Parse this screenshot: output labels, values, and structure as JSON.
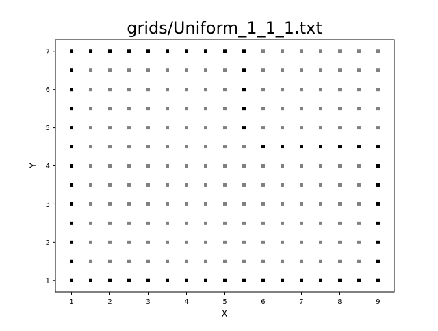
{
  "chart_data": {
    "type": "scatter",
    "title": "grids/Uniform_1_1_1.txt",
    "xlabel": "X",
    "ylabel": "Y",
    "xlim": [
      0.58,
      9.42
    ],
    "ylim": [
      0.7,
      7.3
    ],
    "xticks": [
      1,
      2,
      3,
      4,
      5,
      6,
      7,
      8,
      9
    ],
    "yticks": [
      1,
      2,
      3,
      4,
      5,
      6,
      7
    ],
    "grid": false,
    "legend": "none",
    "marker": "square",
    "grid_points": {
      "x_start": 1,
      "x_end": 9,
      "x_step": 0.5,
      "y_start": 1,
      "y_end": 7,
      "y_step": 0.5,
      "color": "#808080"
    },
    "highlighted_points": {
      "color": "#000000",
      "points": [
        [
          1,
          1
        ],
        [
          1.5,
          1
        ],
        [
          2,
          1
        ],
        [
          2.5,
          1
        ],
        [
          3,
          1
        ],
        [
          3.5,
          1
        ],
        [
          4,
          1
        ],
        [
          4.5,
          1
        ],
        [
          5,
          1
        ],
        [
          5.5,
          1
        ],
        [
          6,
          1
        ],
        [
          6.5,
          1
        ],
        [
          7,
          1
        ],
        [
          7.5,
          1
        ],
        [
          8,
          1
        ],
        [
          8.5,
          1
        ],
        [
          9,
          1
        ],
        [
          1,
          1.5
        ],
        [
          1,
          2
        ],
        [
          1,
          2.5
        ],
        [
          1,
          3
        ],
        [
          1,
          3.5
        ],
        [
          1,
          4
        ],
        [
          1,
          4.5
        ],
        [
          1,
          5
        ],
        [
          1,
          5.5
        ],
        [
          1,
          6
        ],
        [
          1,
          6.5
        ],
        [
          1,
          7
        ],
        [
          1.5,
          7
        ],
        [
          2,
          7
        ],
        [
          2.5,
          7
        ],
        [
          3,
          7
        ],
        [
          3.5,
          7
        ],
        [
          4,
          7
        ],
        [
          4.5,
          7
        ],
        [
          5,
          7
        ],
        [
          5.5,
          7
        ],
        [
          5.5,
          6.5
        ],
        [
          5.5,
          6
        ],
        [
          5.5,
          5.5
        ],
        [
          5.5,
          5
        ],
        [
          6,
          4.5
        ],
        [
          6.5,
          4.5
        ],
        [
          7,
          4.5
        ],
        [
          7.5,
          4.5
        ],
        [
          8,
          4.5
        ],
        [
          8.5,
          4.5
        ],
        [
          9,
          4.5
        ],
        [
          9,
          4
        ],
        [
          9,
          3.5
        ],
        [
          9,
          3
        ],
        [
          9,
          2.5
        ],
        [
          9,
          2
        ],
        [
          9,
          1.5
        ]
      ]
    }
  }
}
